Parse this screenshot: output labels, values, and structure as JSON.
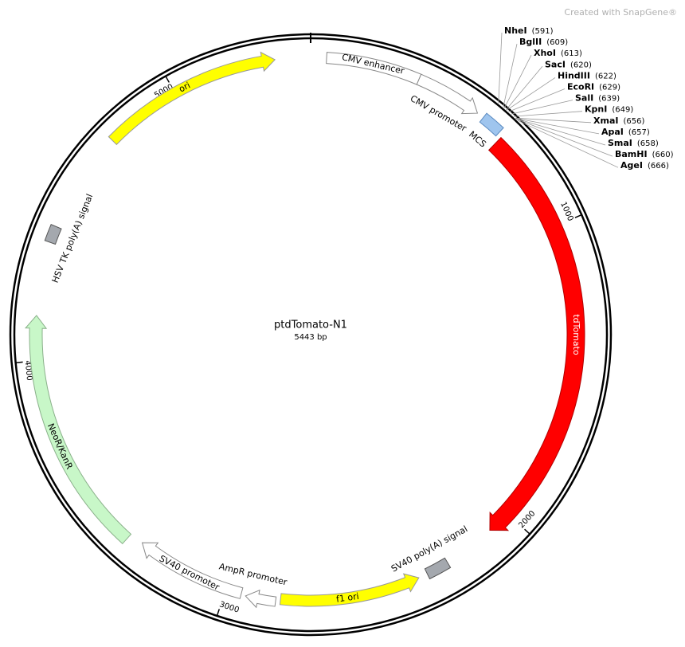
{
  "watermark": "Created with SnapGene®",
  "map": {
    "name": "ptdTomato-N1",
    "length": "5443 bp",
    "ticks": [
      "1000",
      "2000",
      "3000",
      "4000",
      "5000"
    ]
  },
  "features": [
    {
      "label": "CMV enhancer"
    },
    {
      "label": "CMV promoter"
    },
    {
      "label": "MCS"
    },
    {
      "label": "tdTomato"
    },
    {
      "label": "SV40 poly(A) signal"
    },
    {
      "label": "f1 ori"
    },
    {
      "label": "AmpR promoter"
    },
    {
      "label": "SV40 promoter"
    },
    {
      "label": "NeoR/KanR"
    },
    {
      "label": "HSV TK poly(A) signal"
    },
    {
      "label": "ori"
    }
  ],
  "sites": [
    {
      "name": "NheI",
      "position": "(591)"
    },
    {
      "name": "BglII",
      "position": "(609)"
    },
    {
      "name": "XhoI",
      "position": "(613)"
    },
    {
      "name": "SacI",
      "position": "(620)"
    },
    {
      "name": "HindIII",
      "position": "(622)"
    },
    {
      "name": "EcoRI",
      "position": "(629)"
    },
    {
      "name": "SalI",
      "position": "(639)"
    },
    {
      "name": "KpnI",
      "position": "(649)"
    },
    {
      "name": "XmaI",
      "position": "(656)"
    },
    {
      "name": "ApaI",
      "position": "(657)"
    },
    {
      "name": "SmaI",
      "position": "(658)"
    },
    {
      "name": "BamHI",
      "position": "(660)"
    },
    {
      "name": "AgeI",
      "position": "(666)"
    }
  ]
}
